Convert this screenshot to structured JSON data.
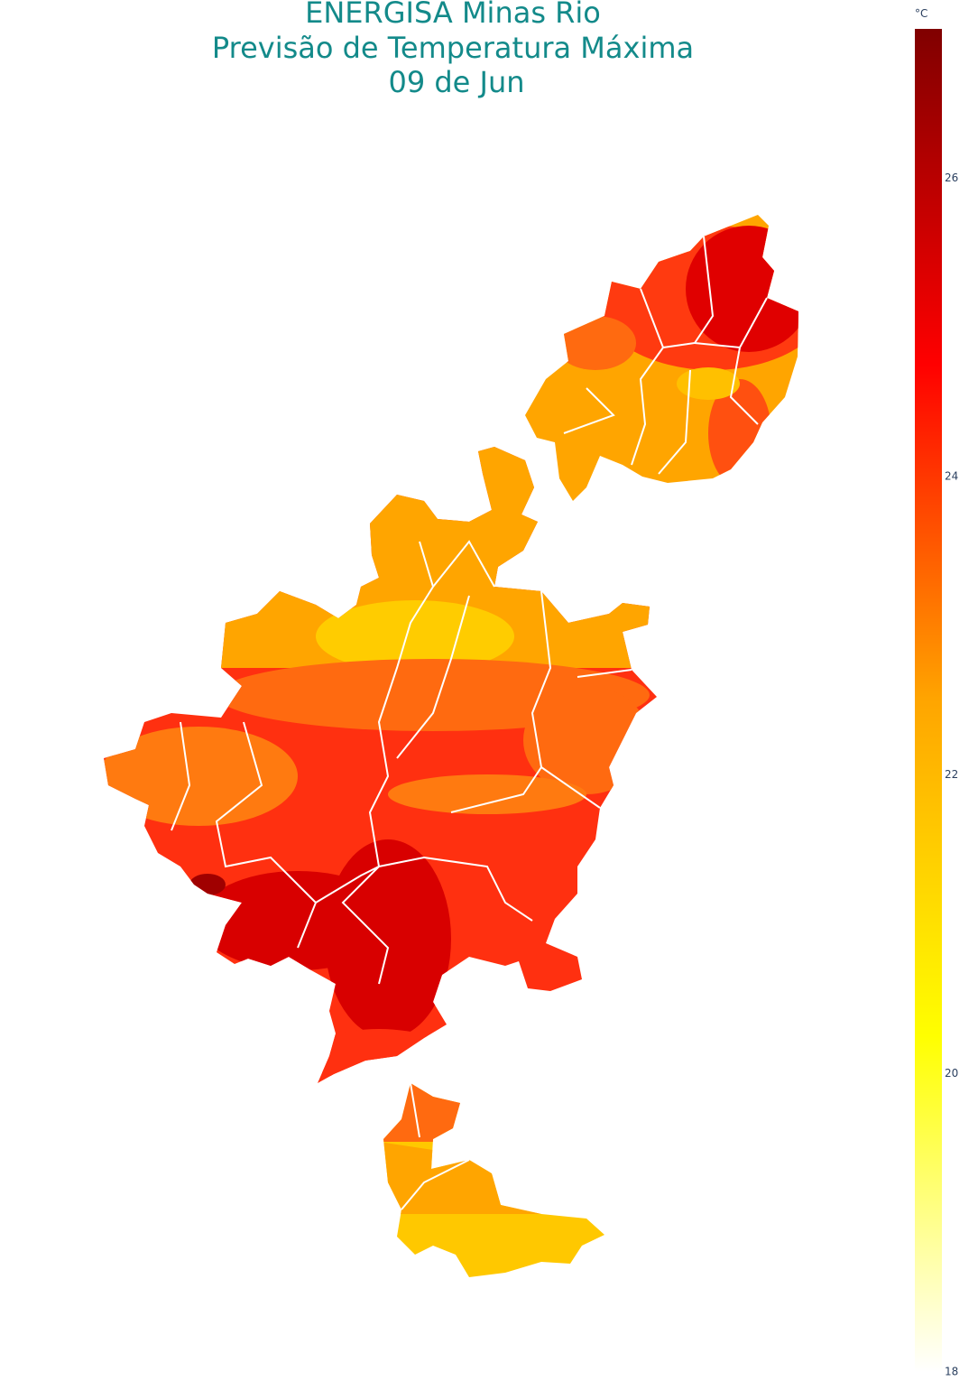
{
  "chart_data": {
    "type": "choropleth-map",
    "title_lines": [
      "ENERGISA Minas Rio",
      "Previsão de Temperatura Máxima",
      "09 de Jun"
    ],
    "title_color": "#138a8a",
    "colorbar": {
      "title": "°C",
      "range": [
        18,
        27
      ],
      "ticks": [
        18,
        20,
        22,
        24,
        26
      ],
      "colorscale": [
        "#ffffff",
        "#ffff00",
        "#ffa500",
        "#ff0000",
        "#800000"
      ]
    }
  }
}
